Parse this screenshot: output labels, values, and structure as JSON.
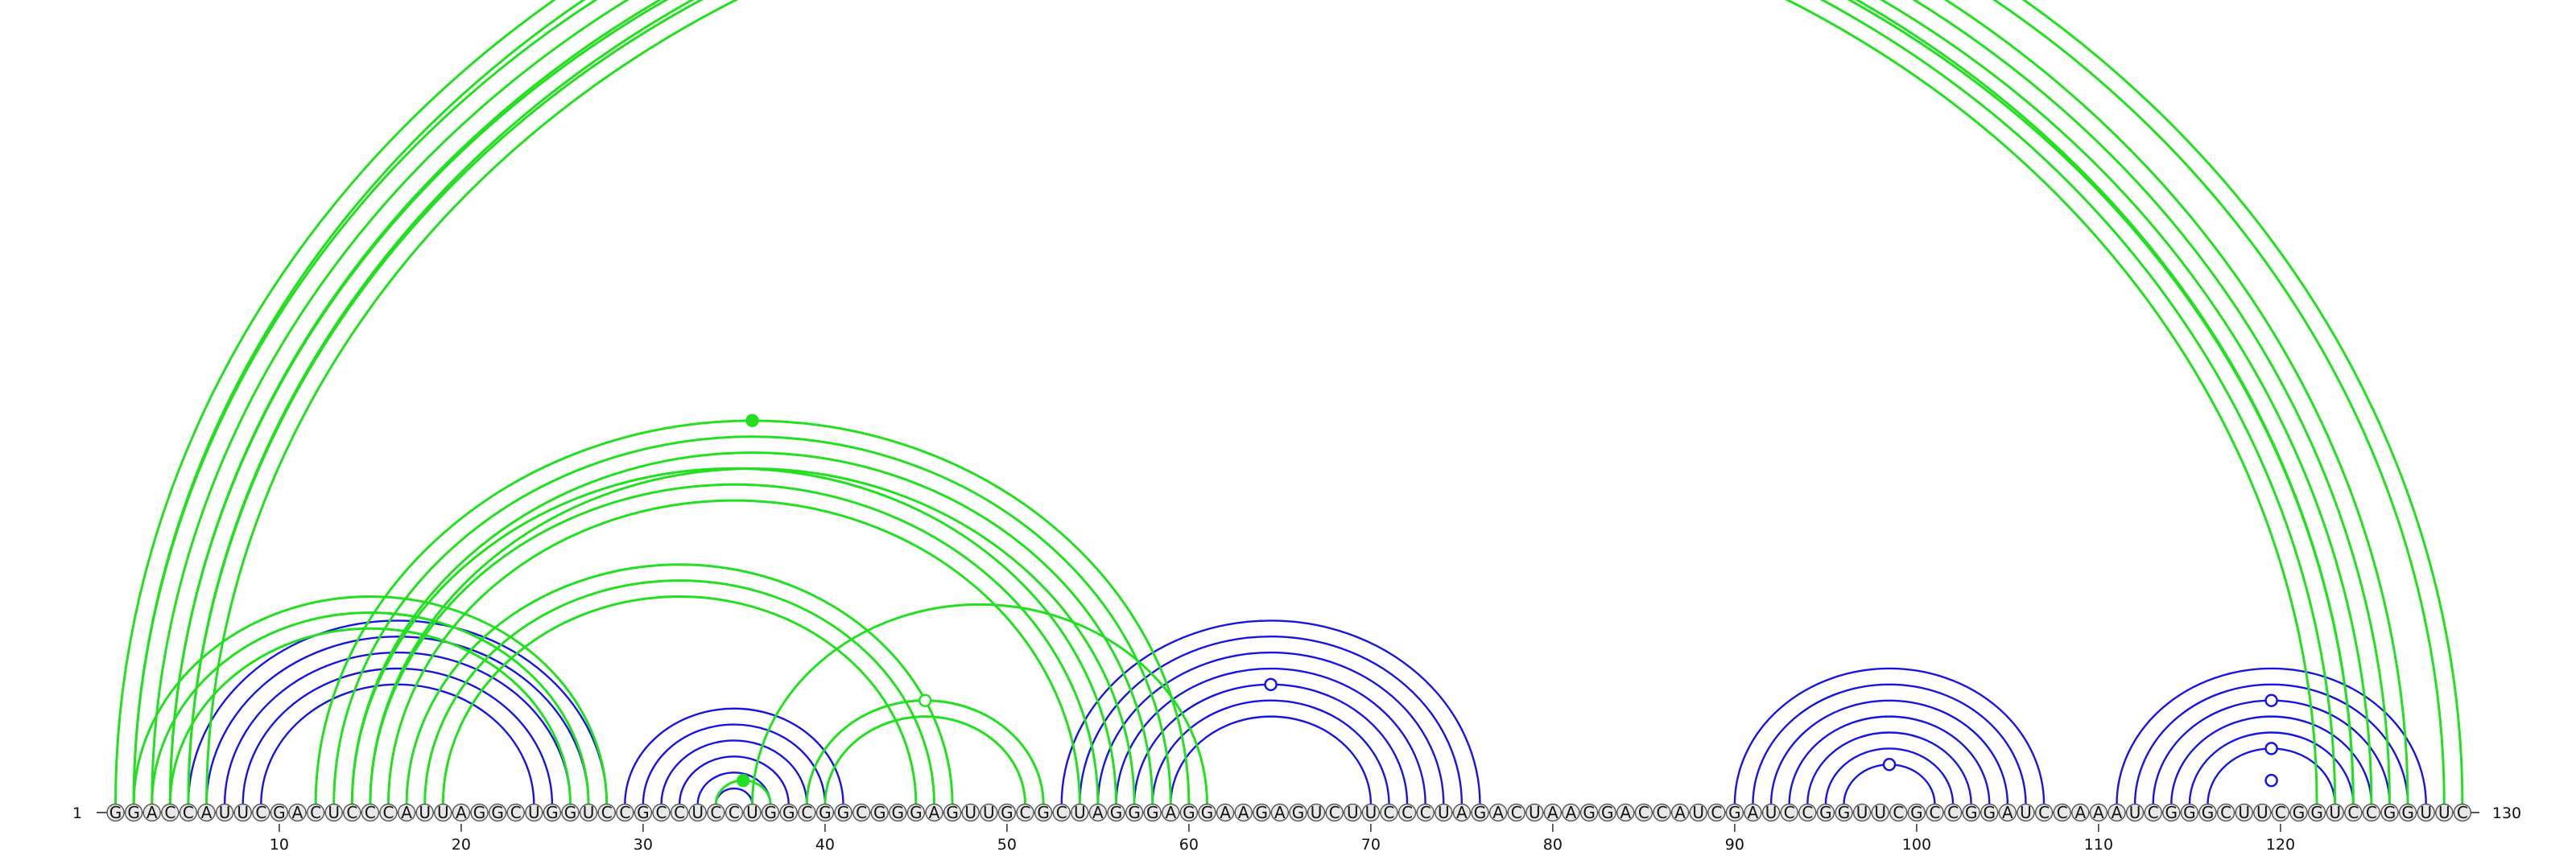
{
  "sequence": "GGACCAUUCGACUCCCAUUAGGCUGGUCCGCCUCCUGGCGGCGGGAGUUGCGCUAGGGAGGAAGAGUCUUCCCUAGACUAAGGACCAUCGAUCCGGUUCGCCGGAUCCAAAUCGGGCUUCGGUCCGGUUC",
  "start_label": "1",
  "end_label": "130",
  "tick_positions": [
    10,
    20,
    30,
    40,
    50,
    60,
    70,
    80,
    90,
    100,
    110,
    120
  ],
  "colors": {
    "blue_arc": "#1616e0",
    "green_arc": "#22e01f",
    "nucleotide_fill": "#e8e8e8",
    "nucleotide_stroke": "#555555"
  },
  "blue_helices": [
    {
      "i": 5,
      "j": 28,
      "count": 5
    },
    {
      "i": 29,
      "j": 41,
      "count": 6
    },
    {
      "i": 53,
      "j": 76,
      "count": 7
    },
    {
      "i": 90,
      "j": 107,
      "count": 7
    },
    {
      "i": 111,
      "j": 128,
      "count": 6
    }
  ],
  "green_helices": [
    {
      "i": 1,
      "j": 130,
      "count": 2
    },
    {
      "i": 2,
      "j": 127,
      "count": 4
    },
    {
      "i": 4,
      "j": 124,
      "count": 3
    },
    {
      "i": 2,
      "j": 28,
      "count": 3
    },
    {
      "i": 12,
      "j": 60,
      "count": 4
    },
    {
      "i": 14,
      "j": 56,
      "count": 3
    },
    {
      "i": 17,
      "j": 47,
      "count": 3
    },
    {
      "i": 36,
      "j": 61,
      "count": 1
    },
    {
      "i": 39,
      "j": 52,
      "count": 2
    },
    {
      "i": 34,
      "j": 37,
      "count": 1
    }
  ],
  "markers": [
    {
      "i": 12,
      "j": 60,
      "style": "filled",
      "color": "green"
    },
    {
      "i": 39,
      "j": 52,
      "style": "open",
      "color": "green"
    },
    {
      "i": 34,
      "j": 37,
      "style": "filled",
      "color": "green"
    },
    {
      "i": 57,
      "j": 72,
      "style": "open",
      "color": "blue"
    },
    {
      "i": 96,
      "j": 101,
      "style": "open",
      "color": "blue"
    },
    {
      "i": 113,
      "j": 126,
      "style": "open",
      "color": "blue"
    },
    {
      "i": 116,
      "j": 123,
      "style": "open",
      "color": "blue"
    },
    {
      "i": 118,
      "j": 121,
      "style": "open",
      "color": "blue"
    }
  ]
}
